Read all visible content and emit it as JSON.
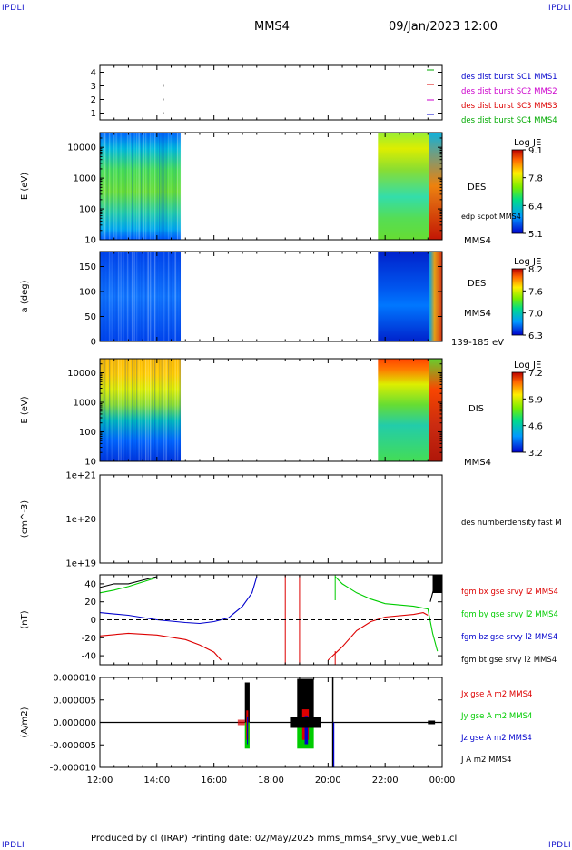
{
  "header": {
    "corner_label": "IPDLI",
    "spacecraft": "MMS4",
    "datetime": "09/Jan/2023 12:00"
  },
  "footer": {
    "text": "Produced by cl (IRAP)   Printing date: 02/May/2025   mms_mms4_srvy_vue_web1.cl"
  },
  "colors": {
    "mms1": "#0000cc",
    "mms2": "#cc00cc",
    "mms3": "#dd0000",
    "mms4": "#00aa00",
    "bx": "#dd0000",
    "by": "#00cc00",
    "bz": "#0000cc",
    "bt": "#000000"
  },
  "chart_data": [
    {
      "type": "scatter",
      "panel": "burst",
      "ylabel": "",
      "yticks": [
        "4",
        "3",
        "2",
        "1"
      ],
      "ylim": [
        0.5,
        4.5
      ],
      "legend": [
        "des dist burst SC1 MMS1",
        "des dist burst SC2 MMS2",
        "des dist burst SC3 MMS3",
        "des dist burst SC4 MMS4"
      ],
      "marks": [
        {
          "x": "14:12",
          "y": 3
        },
        {
          "x": "14:12",
          "y": 2
        },
        {
          "x": "14:12",
          "y": 1
        }
      ]
    },
    {
      "type": "heatmap",
      "panel": "des-energy",
      "ylabel": "E (eV)",
      "yscale": "log",
      "ylim": [
        10,
        30000
      ],
      "yticks": [
        "10000",
        "1000",
        "100",
        "10"
      ],
      "right_labels": [
        "DES",
        "edp scpot MMS4",
        "MMS4"
      ],
      "colorbar": {
        "title": "Log JE",
        "ticks": [
          "9.1",
          "7.8",
          "6.4",
          "5.1"
        ],
        "range": [
          5.1,
          9.1
        ]
      },
      "coverage": [
        [
          "12:00",
          "14:50"
        ],
        [
          "21:45",
          "00:00"
        ]
      ]
    },
    {
      "type": "heatmap",
      "panel": "des-pitch",
      "ylabel": "a (deg)",
      "ylim": [
        0,
        180
      ],
      "yticks": [
        "150",
        "100",
        "50",
        "0"
      ],
      "right_labels": [
        "DES",
        "MMS4",
        "139-185 eV"
      ],
      "colorbar": {
        "title": "Log JE",
        "ticks": [
          "8.2",
          "7.6",
          "7.0",
          "6.3"
        ],
        "range": [
          6.3,
          8.2
        ]
      },
      "coverage": [
        [
          "12:00",
          "14:50"
        ],
        [
          "21:45",
          "00:00"
        ]
      ]
    },
    {
      "type": "heatmap",
      "panel": "dis-energy",
      "ylabel": "E (eV)",
      "yscale": "log",
      "ylim": [
        10,
        30000
      ],
      "yticks": [
        "10000",
        "1000",
        "100",
        "10"
      ],
      "right_labels": [
        "DIS",
        "MMS4"
      ],
      "colorbar": {
        "title": "Log JE",
        "ticks": [
          "7.2",
          "5.9",
          "4.6",
          "3.2"
        ],
        "range": [
          3.2,
          7.2
        ]
      },
      "coverage": [
        [
          "12:00",
          "14:50"
        ],
        [
          "21:45",
          "00:00"
        ]
      ]
    },
    {
      "type": "line",
      "panel": "density",
      "ylabel": "(cm^-3)",
      "yscale": "log",
      "yticks": [
        "1e+21",
        "1e+20",
        "1e+19"
      ],
      "legend": [
        "des numberdensity fast M"
      ]
    },
    {
      "type": "line",
      "panel": "fgm",
      "ylabel": "(nT)",
      "ylim": [
        -50,
        50
      ],
      "yticks": [
        "40",
        "20",
        "0",
        "-20",
        "-40"
      ],
      "legend": [
        "fgm bx gse srvy l2 MMS4",
        "fgm by gse srvy l2 MMS4",
        "fgm bz gse srvy l2 MMS4",
        "fgm bt gse srvy l2 MMS4"
      ],
      "series": [
        {
          "key": "bx",
          "points": [
            [
              "12:00",
              -18
            ],
            [
              "13:00",
              -15
            ],
            [
              "14:00",
              -17
            ],
            [
              "15:00",
              -22
            ],
            [
              "15:30",
              -28
            ],
            [
              "16:00",
              -36
            ],
            [
              "16:15",
              -45
            ]
          ]
        },
        {
          "key": "by",
          "points": [
            [
              "12:00",
              30
            ],
            [
              "12:30",
              33
            ],
            [
              "13:00",
              37
            ],
            [
              "13:30",
              42
            ],
            [
              "14:00",
              47
            ]
          ]
        },
        {
          "key": "bz",
          "points": [
            [
              "12:00",
              8
            ],
            [
              "13:00",
              5
            ],
            [
              "14:00",
              0
            ],
            [
              "15:00",
              -3
            ],
            [
              "15:30",
              -4
            ],
            [
              "16:00",
              -2
            ],
            [
              "16:30",
              2
            ],
            [
              "17:00",
              15
            ],
            [
              "17:20",
              30
            ],
            [
              "17:30",
              48
            ]
          ]
        },
        {
          "key": "bt",
          "points": [
            [
              "12:00",
              36
            ],
            [
              "12:30",
              40
            ],
            [
              "13:00",
              40
            ],
            [
              "13:30",
              44
            ],
            [
              "14:00",
              48
            ]
          ]
        },
        {
          "key": "bx",
          "points": [
            [
              "20:00",
              -45
            ],
            [
              "20:30",
              -30
            ],
            [
              "21:00",
              -12
            ],
            [
              "21:30",
              -2
            ],
            [
              "22:00",
              3
            ],
            [
              "23:00",
              6
            ],
            [
              "23:20",
              8
            ],
            [
              "23:30",
              5
            ]
          ]
        },
        {
          "key": "by",
          "points": [
            [
              "20:15",
              48
            ],
            [
              "20:30",
              40
            ],
            [
              "21:00",
              30
            ],
            [
              "21:30",
              23
            ],
            [
              "22:00",
              18
            ],
            [
              "23:00",
              15
            ],
            [
              "23:30",
              12
            ],
            [
              "23:40",
              -15
            ],
            [
              "23:50",
              -35
            ]
          ]
        },
        {
          "key": "bt",
          "points": [
            [
              "23:35",
              20
            ],
            [
              "23:45",
              40
            ],
            [
              "23:55",
              50
            ],
            [
              "00:00",
              50
            ]
          ]
        }
      ]
    },
    {
      "type": "line",
      "panel": "current",
      "ylabel": "(A/m2)",
      "ylim": [
        -1e-05,
        1e-05
      ],
      "yticks": [
        "0.000010",
        "0.000005",
        "0.000000",
        "-0.000005",
        "-0.000010"
      ],
      "legend": [
        "Jx gse A m2 MMS4",
        "Jy gse A m2 MMS4",
        "Jz gse A m2 MMS4",
        "J A m2 MMS4"
      ]
    }
  ],
  "xaxis": {
    "ticks": [
      "12:00",
      "14:00",
      "16:00",
      "18:00",
      "20:00",
      "22:00",
      "00:00"
    ]
  }
}
